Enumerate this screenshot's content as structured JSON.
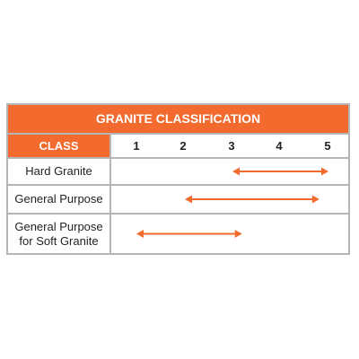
{
  "title": "GRANITE CLASSIFICATION",
  "header": {
    "class_label": "CLASS",
    "columns": [
      "1",
      "2",
      "3",
      "4",
      "5"
    ]
  },
  "rows": [
    {
      "label_lines": [
        "Hard Granite"
      ],
      "range": [
        3,
        5
      ]
    },
    {
      "label_lines": [
        "General Purpose"
      ],
      "range": [
        2,
        4.8
      ]
    },
    {
      "label_lines": [
        "General Purpose",
        "for Soft Granite"
      ],
      "range": [
        1,
        3.2
      ]
    }
  ],
  "colors": {
    "accent": "#f26a2e",
    "border": "#b5b5b5",
    "arrow": "#f26a2e"
  },
  "icons": {
    "arrow": "double-headed-arrow-icon"
  }
}
